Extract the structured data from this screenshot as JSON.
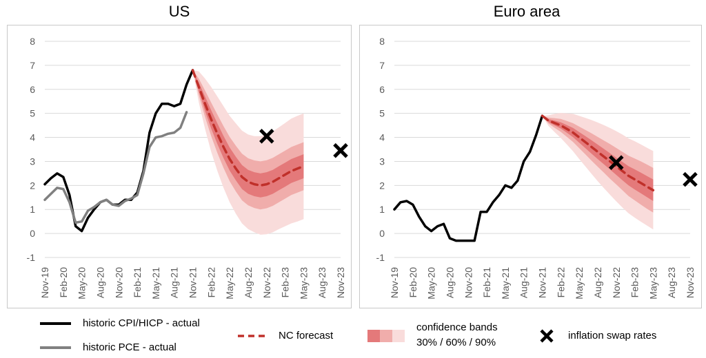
{
  "colors": {
    "cpi": "#000000",
    "pce": "#808080",
    "forecast": "#c0302a",
    "band30": "#e4797a",
    "band60": "#f0adab",
    "band90": "#f9dcdb",
    "grid": "#d9d9d9"
  },
  "chart_data": [
    {
      "type": "line",
      "title": "US",
      "ylim": [
        -1,
        8
      ],
      "yticks": [
        "-1",
        "0",
        "1",
        "2",
        "3",
        "4",
        "5",
        "6",
        "7",
        "8"
      ],
      "xticks": [
        "Nov-19",
        "Feb-20",
        "May-20",
        "Aug-20",
        "Nov-20",
        "Feb-21",
        "May-21",
        "Aug-21",
        "Nov-21",
        "Feb-22",
        "May-22",
        "Aug-22",
        "Nov-22",
        "Feb-23",
        "May-23",
        "Aug-23",
        "Nov-23"
      ],
      "series": [
        {
          "key": "cpi",
          "name": "historic CPI/HICP - actual",
          "start": 0,
          "values": [
            2.05,
            2.3,
            2.5,
            2.35,
            1.6,
            0.3,
            0.1,
            0.65,
            1.0,
            1.3,
            1.4,
            1.2,
            1.2,
            1.4,
            1.4,
            1.7,
            2.6,
            4.2,
            5.0,
            5.4,
            5.4,
            5.3,
            5.4,
            6.2,
            6.8
          ]
        },
        {
          "key": "pce",
          "name": "historic PCE - actual",
          "start": 0,
          "values": [
            1.4,
            1.65,
            1.9,
            1.85,
            1.3,
            0.45,
            0.5,
            0.95,
            1.1,
            1.3,
            1.4,
            1.2,
            1.15,
            1.35,
            1.45,
            1.6,
            2.5,
            3.6,
            4.0,
            4.05,
            4.15,
            4.2,
            4.4,
            5.05
          ]
        },
        {
          "key": "forecast",
          "name": "NC forecast",
          "start": 24,
          "values": [
            6.8,
            6.1,
            5.4,
            4.75,
            4.15,
            3.6,
            3.1,
            2.7,
            2.35,
            2.15,
            2.05,
            2.0,
            2.05,
            2.15,
            2.3,
            2.45,
            2.6,
            2.7,
            2.8
          ]
        }
      ],
      "bands": {
        "start": 24,
        "half_width_30": [
          0,
          0.18,
          0.3,
          0.38,
          0.43,
          0.46,
          0.48,
          0.49,
          0.5,
          0.5,
          0.5,
          0.5,
          0.5,
          0.5,
          0.5,
          0.5,
          0.5,
          0.5,
          0.5
        ],
        "half_width_60": [
          0,
          0.35,
          0.55,
          0.7,
          0.8,
          0.87,
          0.92,
          0.95,
          0.97,
          0.98,
          0.99,
          1.0,
          1.0,
          1.0,
          1.0,
          1.0,
          1.0,
          1.0,
          1.0
        ],
        "half_width_90": [
          0,
          0.65,
          1.05,
          1.35,
          1.55,
          1.7,
          1.8,
          1.88,
          1.93,
          1.97,
          2.0,
          2.05,
          2.08,
          2.1,
          2.12,
          2.15,
          2.18,
          2.2,
          2.2
        ]
      },
      "swap_rates": [
        {
          "x": 36,
          "y": 4.05
        },
        {
          "x": 48,
          "y": 3.45
        }
      ]
    },
    {
      "type": "line",
      "title": "Euro area",
      "ylim": [
        -1,
        8
      ],
      "yticks": [
        "-1",
        "0",
        "1",
        "2",
        "3",
        "4",
        "5",
        "6",
        "7",
        "8"
      ],
      "xticks": [
        "Nov-19",
        "Feb-20",
        "May-20",
        "Aug-20",
        "Nov-20",
        "Feb-21",
        "May-21",
        "Aug-21",
        "Nov-21",
        "Feb-22",
        "May-22",
        "Aug-22",
        "Nov-22",
        "Feb-23",
        "May-23",
        "Aug-23",
        "Nov-23"
      ],
      "series": [
        {
          "key": "cpi",
          "name": "historic CPI/HICP - actual",
          "start": 0,
          "values": [
            1.0,
            1.3,
            1.35,
            1.2,
            0.7,
            0.3,
            0.1,
            0.3,
            0.4,
            -0.2,
            -0.3,
            -0.3,
            -0.3,
            -0.3,
            0.9,
            0.9,
            1.3,
            1.6,
            2.0,
            1.9,
            2.2,
            3.0,
            3.4,
            4.1,
            4.9
          ]
        },
        {
          "key": "forecast",
          "name": "NC forecast",
          "start": 24,
          "values": [
            4.9,
            4.7,
            4.6,
            4.5,
            4.35,
            4.2,
            4.0,
            3.8,
            3.6,
            3.4,
            3.2,
            3.0,
            2.8,
            2.6,
            2.4,
            2.25,
            2.1,
            1.95,
            1.8
          ]
        }
      ],
      "bands": {
        "start": 24,
        "half_width_30": [
          0,
          0.06,
          0.1,
          0.13,
          0.16,
          0.19,
          0.22,
          0.25,
          0.28,
          0.3,
          0.32,
          0.34,
          0.36,
          0.38,
          0.4,
          0.42,
          0.43,
          0.44,
          0.45
        ],
        "half_width_60": [
          0,
          0.12,
          0.2,
          0.27,
          0.33,
          0.39,
          0.45,
          0.51,
          0.57,
          0.62,
          0.67,
          0.72,
          0.76,
          0.8,
          0.84,
          0.87,
          0.9,
          0.92,
          0.93
        ],
        "half_width_90": [
          0,
          0.22,
          0.38,
          0.52,
          0.65,
          0.78,
          0.9,
          1.01,
          1.12,
          1.22,
          1.31,
          1.39,
          1.46,
          1.52,
          1.56,
          1.59,
          1.61,
          1.62,
          1.63
        ]
      },
      "swap_rates": [
        {
          "x": 36,
          "y": 2.95
        },
        {
          "x": 48,
          "y": 2.25
        }
      ]
    }
  ],
  "legend": {
    "cpi": "historic CPI/HICP - actual",
    "pce": "historic PCE - actual",
    "forecast": "NC forecast",
    "bands_title": "confidence bands",
    "bands_levels": "30% / 60% / 90%",
    "swap": "inflation swap rates"
  }
}
